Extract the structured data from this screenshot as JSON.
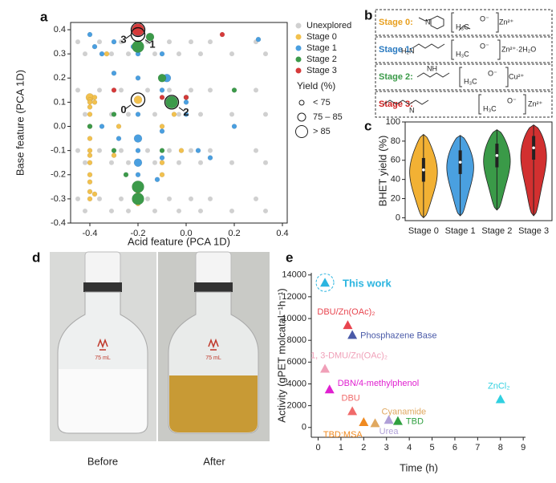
{
  "chart_data": [
    {
      "type": "scatter",
      "label": "a",
      "xlabel": "Acid feature (PCA 1D)",
      "ylabel": "Base feature (PCA 1D)",
      "xlim": [
        -0.48,
        0.42
      ],
      "ylim": [
        -0.4,
        0.43
      ],
      "xticks": [
        -0.4,
        -0.2,
        {
          "value": 0,
          "label": "0.0"
        },
        0.2,
        0.4
      ],
      "yticks": [
        -0.4,
        -0.3,
        -0.2,
        -0.1,
        {
          "value": 0,
          "label": "0.0"
        },
        0.1,
        0.2,
        0.3,
        0.4
      ],
      "legend": "right",
      "series": [
        {
          "name": "Unexplored",
          "color": "#d0d0d0",
          "x": [
            -0.45,
            -0.45,
            -0.45,
            -0.45,
            -0.42,
            -0.42,
            -0.42,
            -0.42,
            -0.36,
            -0.36,
            -0.36,
            -0.36,
            -0.31,
            -0.31,
            -0.31,
            -0.31,
            -0.27,
            -0.27,
            -0.27,
            -0.27,
            -0.24,
            -0.24,
            -0.24,
            -0.24,
            -0.16,
            -0.16,
            -0.16,
            -0.16,
            -0.13,
            -0.13,
            -0.13,
            -0.13,
            -0.07,
            -0.07,
            -0.07,
            -0.07,
            -0.03,
            -0.03,
            -0.03,
            -0.03,
            0.02,
            0.02,
            0.02,
            0.02,
            0.06,
            0.06,
            0.06,
            0.06,
            0.1,
            0.1,
            0.1,
            0.1,
            0.19,
            0.19,
            0.19,
            0.19,
            0.29,
            0.29,
            0.29,
            0.29,
            0.33,
            0.33,
            0.33,
            0.33
          ],
          "y": [
            0.35,
            0.15,
            -0.1,
            -0.3,
            0.3,
            0.05,
            -0.15,
            -0.35,
            0.35,
            0.15,
            -0.1,
            -0.3,
            0.3,
            0.05,
            -0.15,
            -0.35,
            0.35,
            0.15,
            -0.1,
            -0.3,
            0.3,
            0.05,
            -0.15,
            -0.35,
            0.35,
            0.15,
            -0.1,
            -0.3,
            0.3,
            0.05,
            -0.15,
            -0.35,
            0.35,
            0.15,
            -0.1,
            -0.3,
            0.3,
            0.05,
            -0.15,
            -0.35,
            0.35,
            0.15,
            -0.1,
            -0.3,
            0.3,
            0.05,
            -0.15,
            -0.35,
            0.35,
            0.15,
            -0.1,
            -0.3,
            0.3,
            0.05,
            -0.15,
            -0.35,
            0.35,
            0.15,
            -0.1,
            -0.3,
            0.3,
            0.05,
            -0.15,
            -0.35
          ],
          "yield_class": [
            0,
            0,
            0,
            0,
            0,
            0,
            0,
            0,
            0,
            0,
            0,
            0,
            0,
            0,
            0,
            0,
            0,
            0,
            0,
            0,
            0,
            0,
            0,
            0,
            0,
            0,
            0,
            0,
            0,
            0,
            0,
            0,
            0,
            0,
            0,
            0,
            0,
            0,
            0,
            0,
            0,
            0,
            0,
            0,
            0,
            0,
            0,
            0,
            0,
            0,
            0,
            0,
            0,
            0,
            0,
            0,
            0,
            0,
            0,
            0,
            0,
            0,
            0,
            0
          ]
        },
        {
          "name": "Stage 0",
          "color": "#f2c14e",
          "x": [
            -0.4,
            -0.4,
            -0.4,
            -0.4,
            -0.4,
            -0.4,
            -0.4,
            -0.4,
            -0.4,
            -0.4,
            -0.4,
            -0.4,
            -0.4,
            -0.4,
            -0.38,
            -0.38,
            -0.38,
            -0.33,
            -0.2,
            -0.2,
            -0.2,
            -0.2,
            -0.2,
            -0.1,
            -0.1,
            -0.1,
            -0.05,
            -0.02,
            -0.3,
            -0.28
          ],
          "y": [
            0.12,
            0.11,
            0.1,
            0.08,
            0.05,
            0.0,
            -0.05,
            -0.1,
            -0.12,
            -0.15,
            -0.2,
            -0.23,
            -0.27,
            -0.3,
            0.12,
            0.1,
            -0.28,
            0.3,
            0.11,
            -0.25,
            -0.27,
            -0.3,
            -0.32,
            -0.15,
            -0.2,
            0.0,
            0.05,
            -0.1,
            -0.12,
            0.0
          ],
          "yield_class": [
            1,
            0,
            0,
            0,
            0,
            0,
            0,
            0,
            0,
            0,
            0,
            0,
            0,
            0,
            0,
            0,
            0,
            0,
            1,
            0,
            0,
            1,
            0,
            0,
            0,
            0,
            0,
            0,
            0,
            0
          ]
        },
        {
          "name": "Stage 1",
          "color": "#4a9fe0",
          "x": [
            -0.4,
            -0.38,
            -0.35,
            -0.3,
            -0.3,
            -0.2,
            -0.2,
            -0.2,
            -0.2,
            -0.2,
            -0.2,
            -0.2,
            -0.2,
            -0.22,
            -0.1,
            -0.1,
            -0.08,
            -0.1,
            -0.1,
            -0.12,
            0.0,
            0.0,
            0.05,
            -0.35,
            -0.28,
            0.3,
            0.2,
            0.1
          ],
          "y": [
            0.38,
            0.33,
            0.3,
            0.22,
            0.35,
            0.38,
            0.3,
            0.2,
            0.05,
            -0.05,
            -0.1,
            -0.15,
            -0.2,
            0.33,
            0.3,
            0.15,
            0.2,
            -0.02,
            -0.13,
            -0.22,
            0.05,
            0.1,
            -0.1,
            0.0,
            -0.05,
            0.36,
            0.0,
            -0.13
          ],
          "yield_class": [
            0,
            0,
            0,
            0,
            0,
            0,
            0,
            0,
            0,
            1,
            0,
            1,
            0,
            0,
            0,
            0,
            1,
            0,
            0,
            0,
            0,
            0,
            0,
            0,
            0,
            0,
            0,
            0
          ]
        },
        {
          "name": "Stage 2",
          "color": "#3c9a4a",
          "x": [
            -0.2,
            -0.2,
            -0.2,
            -0.15,
            -0.06,
            -0.1,
            -0.3,
            -0.3,
            -0.25,
            -0.4,
            -0.1,
            0.0,
            0.2
          ],
          "y": [
            0.33,
            -0.25,
            -0.3,
            0.37,
            0.1,
            0.2,
            0.05,
            -0.1,
            -0.2,
            0.0,
            -0.1,
            0.12,
            0.15
          ],
          "yield_class": [
            2,
            2,
            2,
            1,
            2,
            1,
            0,
            0,
            0,
            0,
            0,
            0,
            0
          ]
        },
        {
          "name": "Stage 3",
          "color": "#d63a3a",
          "x": [
            -0.2,
            0.15,
            -0.1,
            0.0,
            -0.3
          ],
          "y": [
            0.4,
            0.38,
            0.12,
            0.12,
            0.15
          ],
          "yield_class": [
            2,
            0,
            0,
            0,
            0
          ]
        }
      ],
      "size_legend": {
        "title": "Yield (%)",
        "labels": [
          "< 75",
          "75 – 85",
          "> 85"
        ]
      },
      "annotations": [
        {
          "text": "0",
          "x": -0.2,
          "y": 0.11
        },
        {
          "text": "1",
          "x": -0.2,
          "y": 0.38
        },
        {
          "text": "2",
          "x": -0.06,
          "y": 0.1
        },
        {
          "text": "3",
          "x": -0.2,
          "y": 0.4
        }
      ]
    },
    {
      "type": "violin",
      "label": "c",
      "ylabel": "BHET yield (%)",
      "categories": [
        "Stage 0",
        "Stage 1",
        "Stage 2",
        "Stage 3"
      ],
      "colors": [
        "#f2b134",
        "#4aa0e0",
        "#3a9a48",
        "#d23030"
      ],
      "min": [
        0,
        2,
        8,
        2
      ],
      "median": [
        50,
        58,
        65,
        73
      ],
      "max": [
        87,
        86,
        92,
        97
      ],
      "ylim": [
        -3,
        100
      ],
      "yticks": [
        0,
        20,
        40,
        60,
        80,
        100
      ]
    },
    {
      "type": "scatter",
      "label": "e",
      "xlabel": "Time (h)",
      "ylabel": "Activity (gPET molcatal⁻¹h⁻¹)",
      "xlim": [
        -0.3,
        9.1
      ],
      "ylim": [
        -900,
        14200
      ],
      "xticks": [
        0,
        1,
        2,
        3,
        4,
        5,
        6,
        7,
        8,
        9
      ],
      "yticks": [
        0,
        2000,
        4000,
        6000,
        8000,
        10000,
        12000,
        14000
      ],
      "point_labels": true,
      "series": [
        {
          "name": "This work",
          "color": "#2bb5e0",
          "x": [
            0.3
          ],
          "y": [
            13300
          ]
        },
        {
          "name": "DBU/Zn(OAc)₂",
          "color": "#e8454f",
          "x": [
            1.3
          ],
          "y": [
            9400
          ]
        },
        {
          "name": "Phosphazene Base",
          "color": "#4a5aa8",
          "x": [
            1.5
          ],
          "y": [
            8500
          ]
        },
        {
          "name": "1, 3-DMU/Zn(OAc)₂",
          "color": "#f0a0b8",
          "x": [
            0.3
          ],
          "y": [
            5400
          ]
        },
        {
          "name": "DBN/4-methylphenol",
          "color": "#e020d0",
          "x": [
            0.5
          ],
          "y": [
            3500
          ]
        },
        {
          "name": "DBU",
          "color": "#f06a6a",
          "x": [
            1.5
          ],
          "y": [
            1500
          ]
        },
        {
          "name": "Cyanamide",
          "color": "#e0a860",
          "x": [
            2.5
          ],
          "y": [
            400
          ]
        },
        {
          "name": "TBD:MSA",
          "color": "#f08a20",
          "x": [
            2.0
          ],
          "y": [
            500
          ]
        },
        {
          "name": "Urea",
          "color": "#b0a0d8",
          "x": [
            3.1
          ],
          "y": [
            700
          ]
        },
        {
          "name": "TBD",
          "color": "#30a040",
          "x": [
            3.5
          ],
          "y": [
            600
          ]
        },
        {
          "name": "ZnCl₂",
          "color": "#30d0e0",
          "x": [
            8.0
          ],
          "y": [
            2600
          ]
        }
      ]
    }
  ],
  "panel_b": {
    "label": "b",
    "acetate": [
      "H₃C",
      "O⁻"
    ],
    "stages": [
      {
        "name": "Stage 0:",
        "ligand": "N",
        "metal": "Zn²⁺"
      },
      {
        "name": "Stage 1:",
        "ligand": "H₂N",
        "metal": "Zn²⁺·2H₂O"
      },
      {
        "name": "Stage 2:",
        "ligand": "NH",
        "metal": "Cu²⁺"
      },
      {
        "name": "Stage 3:",
        "ligand": "N",
        "metal": "Zn²⁺"
      }
    ]
  },
  "panel_d": {
    "label": "d",
    "captions": [
      "Before",
      "After"
    ],
    "bottle_label": "75 mL"
  }
}
